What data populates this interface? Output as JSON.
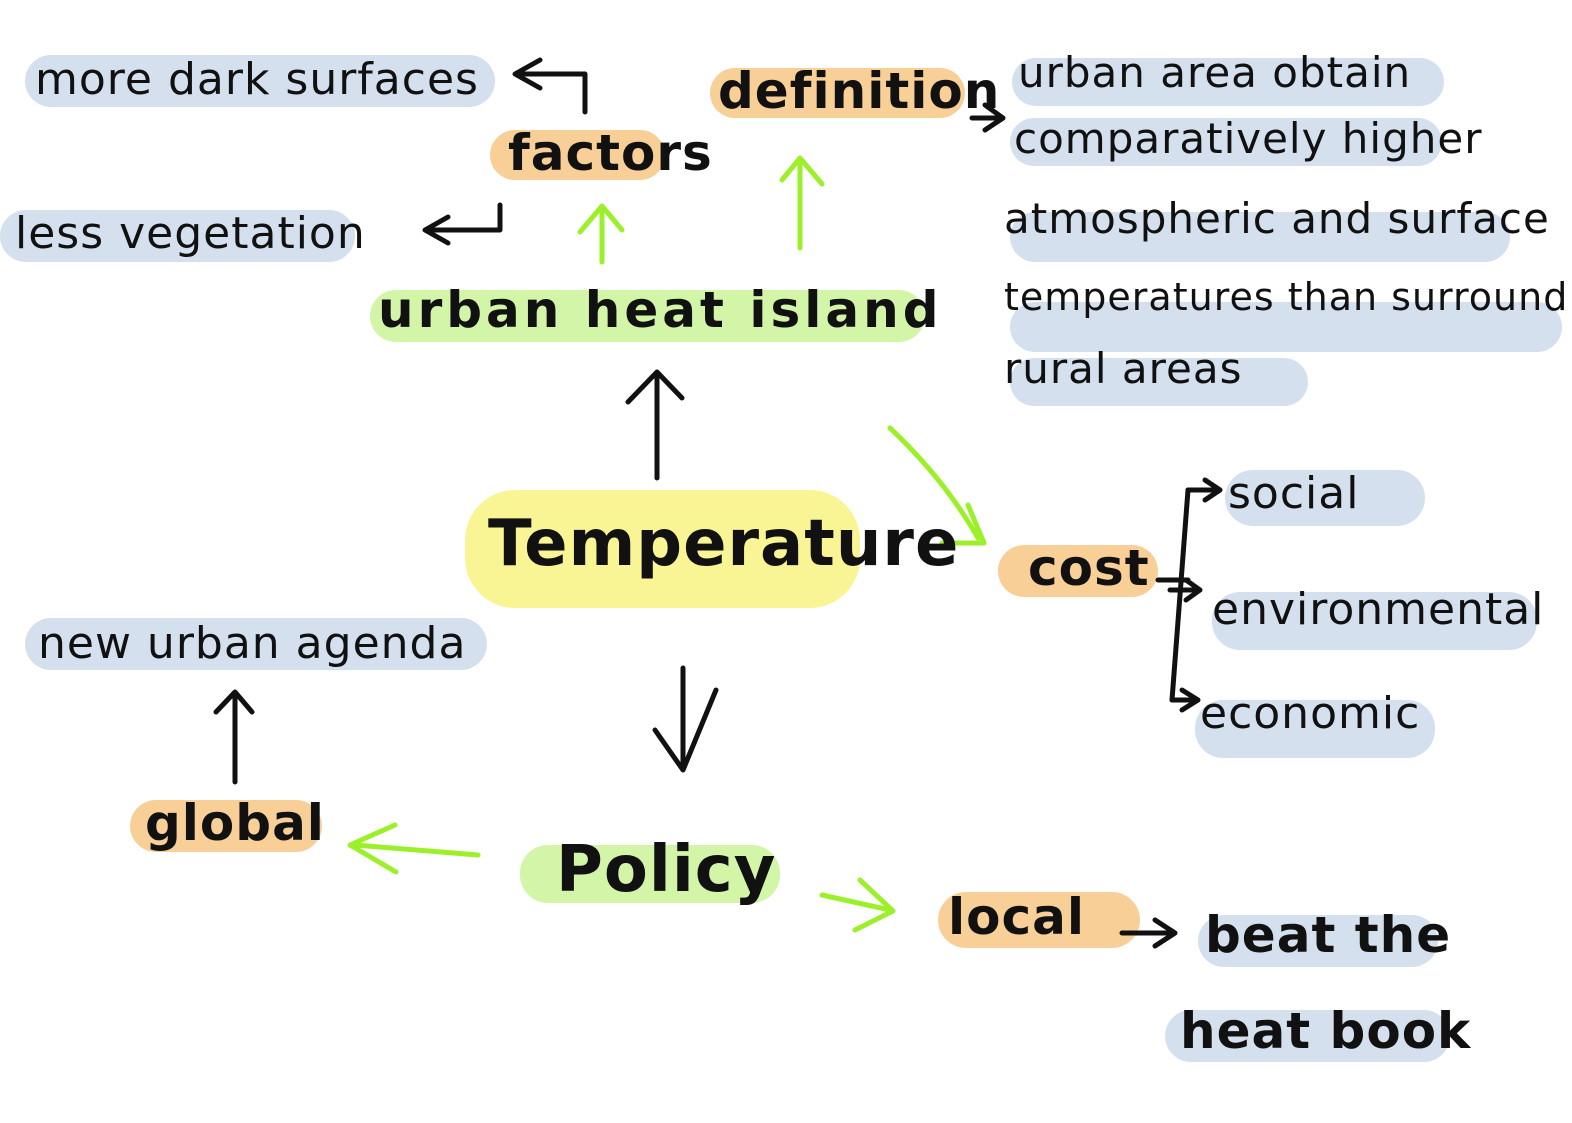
{
  "colors": {
    "blue_highlight": "#d5e0ee",
    "orange_highlight": "#f8cf96",
    "green_highlight": "#d3f5a8",
    "yellow_highlight": "#f9f595",
    "green_arrow": "#9cf02a",
    "ink": "#111111"
  },
  "center": {
    "label": "Temperature"
  },
  "uhi": {
    "label": "urban heat island"
  },
  "factors": {
    "label": "factors",
    "items": [
      "more dark surfaces",
      "less vegetation"
    ]
  },
  "definition": {
    "label": "definition",
    "lines": [
      "urban area obtain",
      "comparatively higher",
      "atmospheric and surface",
      "temperatures than surround",
      "rural areas"
    ]
  },
  "cost": {
    "label": "cost",
    "items": [
      "social",
      "environmental",
      "economic"
    ]
  },
  "policy": {
    "label": "Policy"
  },
  "global": {
    "label": "global",
    "item": "new urban agenda"
  },
  "local": {
    "label": "local",
    "item_lines": [
      "beat the",
      "heat book"
    ]
  }
}
